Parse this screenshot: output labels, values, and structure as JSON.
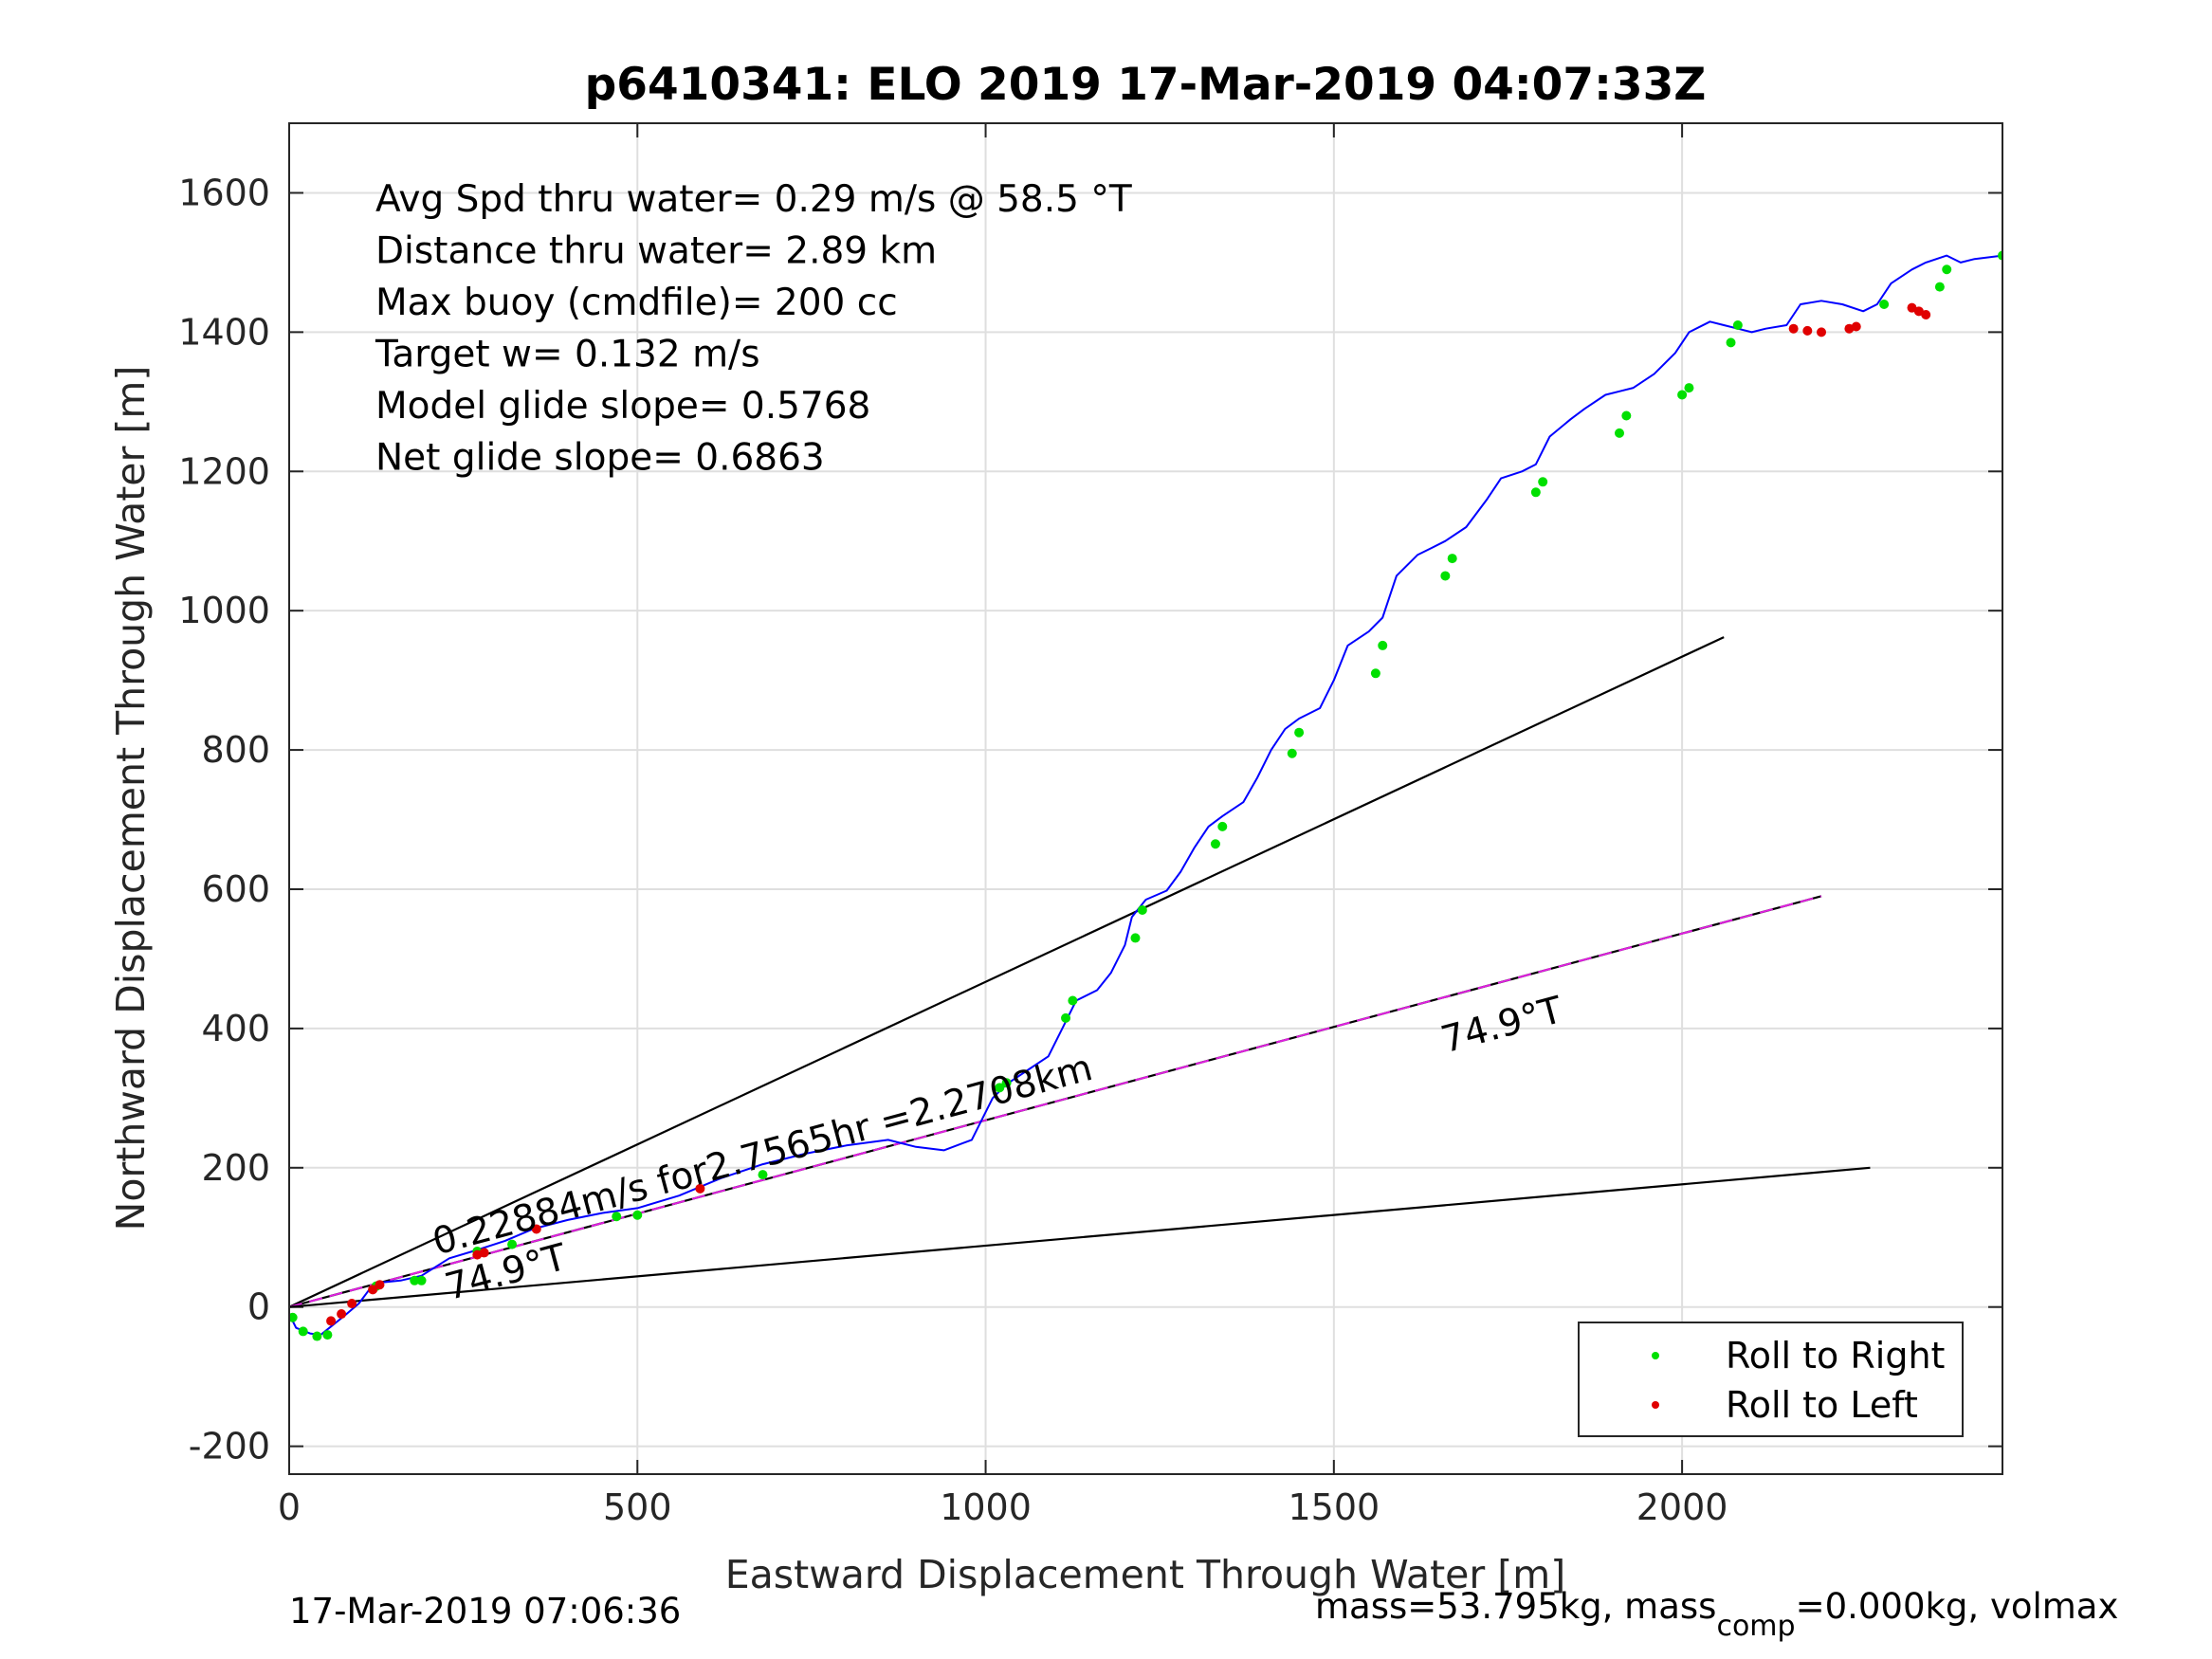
{
  "chart_data": {
    "type": "line",
    "title": "p6410341: ELO 2019 17-Mar-2019 04:07:33Z",
    "xlabel": "Eastward Displacement Through Water [m]",
    "ylabel": "Northward Displacement Through Water [m]",
    "xlim": [
      0,
      2460
    ],
    "ylim": [
      -240,
      1700
    ],
    "xticks": [
      0,
      500,
      1000,
      1500,
      2000
    ],
    "yticks": [
      -200,
      0,
      200,
      400,
      600,
      800,
      1000,
      1200,
      1400,
      1600
    ],
    "grid": true,
    "info_lines": [
      "Avg Spd thru water=  0.29 m/s @  58.5 °T",
      "Distance thru water=  2.89 km",
      "Max buoy (cmdfile)= 200 cc",
      "Target w= 0.132 m/s",
      "Model glide slope= 0.5768",
      "Net glide slope= 0.6863"
    ],
    "reference_lines": [
      {
        "x": [
          0,
          2060
        ],
        "y": [
          0,
          962
        ],
        "color": "#000000"
      },
      {
        "x": [
          0,
          2200
        ],
        "y": [
          0,
          590
        ],
        "color": "#000000"
      },
      {
        "x": [
          0,
          2200
        ],
        "y": [
          0,
          590
        ],
        "color": "#e020e0",
        "dashed": true
      },
      {
        "x": [
          0,
          2270
        ],
        "y": [
          0,
          200
        ],
        "color": "#000000"
      }
    ],
    "annotations": [
      {
        "text": "0.22884m/s for2.7565hr =2.2708km",
        "x": 212,
        "y": 75,
        "angle": 15
      },
      {
        "text": "74.9°T",
        "x": 230,
        "y": 10,
        "angle": 15
      },
      {
        "text": "74.9°T",
        "x": 1660,
        "y": 365,
        "angle": 15
      }
    ],
    "series": [
      {
        "name": "track",
        "color": "#0000ff",
        "x": [
          0,
          10,
          30,
          45,
          60,
          80,
          100,
          115,
          130,
          160,
          190,
          230,
          270,
          310,
          350,
          400,
          450,
          500,
          560,
          620,
          680,
          740,
          800,
          860,
          900,
          940,
          980,
          1010,
          1030,
          1060,
          1090,
          1110,
          1130,
          1160,
          1180,
          1200,
          1210,
          1230,
          1260,
          1280,
          1300,
          1320,
          1340,
          1370,
          1390,
          1410,
          1430,
          1450,
          1480,
          1500,
          1520,
          1550,
          1570,
          1590,
          1620,
          1640,
          1660,
          1690,
          1720,
          1740,
          1770,
          1790,
          1810,
          1840,
          1860,
          1890,
          1910,
          1930,
          1960,
          1990,
          2010,
          2040,
          2060,
          2080,
          2100,
          2120,
          2150,
          2170,
          2200,
          2230,
          2260,
          2280,
          2300,
          2330,
          2350,
          2380,
          2400,
          2420,
          2460
        ],
        "y": [
          -10,
          -30,
          -38,
          -40,
          -28,
          -12,
          5,
          25,
          35,
          38,
          45,
          70,
          82,
          95,
          112,
          125,
          135,
          142,
          160,
          185,
          205,
          220,
          232,
          240,
          230,
          225,
          240,
          300,
          320,
          340,
          360,
          400,
          440,
          455,
          480,
          520,
          560,
          585,
          598,
          625,
          660,
          690,
          705,
          725,
          760,
          800,
          830,
          845,
          860,
          900,
          950,
          970,
          990,
          1050,
          1080,
          1090,
          1100,
          1120,
          1160,
          1190,
          1200,
          1210,
          1250,
          1275,
          1290,
          1310,
          1315,
          1320,
          1340,
          1370,
          1400,
          1415,
          1410,
          1405,
          1400,
          1405,
          1410,
          1440,
          1445,
          1440,
          1430,
          1440,
          1470,
          1490,
          1500,
          1510,
          1500,
          1505,
          1510
        ]
      },
      {
        "name": "Roll to Right",
        "color": "#00e000",
        "x": [
          5,
          20,
          40,
          55,
          125,
          180,
          190,
          270,
          320,
          470,
          500,
          680,
          1020,
          1030,
          1115,
          1125,
          1215,
          1225,
          1330,
          1340,
          1440,
          1450,
          1560,
          1570,
          1660,
          1670,
          1790,
          1800,
          1910,
          1920,
          2000,
          2010,
          2070,
          2080,
          2290,
          2370,
          2380,
          2460
        ],
        "y": [
          -15,
          -35,
          -42,
          -40,
          30,
          38,
          38,
          80,
          90,
          130,
          132,
          190,
          315,
          322,
          415,
          440,
          530,
          570,
          665,
          690,
          795,
          825,
          910,
          950,
          1050,
          1075,
          1170,
          1185,
          1255,
          1280,
          1310,
          1320,
          1385,
          1410,
          1440,
          1465,
          1490,
          1510
        ]
      },
      {
        "name": "Roll to Left",
        "color": "#e00000",
        "x": [
          60,
          75,
          90,
          120,
          130,
          270,
          280,
          355,
          590,
          2160,
          2180,
          2200,
          2240,
          2250,
          2330,
          2340,
          2350
        ],
        "y": [
          -20,
          -10,
          5,
          25,
          32,
          75,
          78,
          112,
          170,
          1405,
          1402,
          1400,
          1405,
          1408,
          1435,
          1430,
          1425
        ]
      }
    ],
    "legend": {
      "position": "bottom-right",
      "entries": [
        {
          "label": "Roll to Right",
          "color": "#00e000"
        },
        {
          "label": "Roll to Left",
          "color": "#e00000"
        }
      ]
    },
    "footer": {
      "timestamp": "17-Mar-2019 07:06:36",
      "mass_main": "mass=53.795kg, mass",
      "mass_sub": "comp",
      "mass_tail": "=0.000kg, volmax"
    }
  }
}
